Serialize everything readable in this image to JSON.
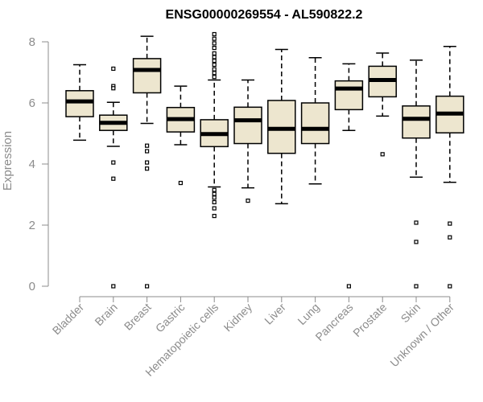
{
  "chart_data": {
    "type": "boxplot",
    "title": "ENSG00000269554 - AL590822.2",
    "xlabel": "",
    "ylabel": "Expression",
    "ylim": [
      0,
      8
    ],
    "yticks": [
      0,
      2,
      4,
      6,
      8
    ],
    "colors": {
      "box_fill": "#ede6cf",
      "stroke": "#000000",
      "axis": "#8c8c8c",
      "median": "#000000"
    },
    "categories": [
      "Bladder",
      "Brain",
      "Breast",
      "Gastric",
      "Hematopoietic cells",
      "Kidney",
      "Liver",
      "Lung",
      "Pancreas",
      "Prostate",
      "Skin",
      "Unknown / Other"
    ],
    "boxes": [
      {
        "category": "Bladder",
        "whisker_low": 4.78,
        "q1": 5.55,
        "median": 6.05,
        "q3": 6.4,
        "whisker_high": 7.25,
        "outliers": []
      },
      {
        "category": "Brain",
        "whisker_low": 4.58,
        "q1": 5.1,
        "median": 5.35,
        "q3": 5.6,
        "whisker_high": 6.02,
        "outliers": [
          7.12,
          6.55,
          6.48,
          4.05,
          3.52,
          0.0
        ]
      },
      {
        "category": "Breast",
        "whisker_low": 5.33,
        "q1": 6.33,
        "median": 7.08,
        "q3": 7.45,
        "whisker_high": 8.18,
        "outliers": [
          4.6,
          4.42,
          4.05,
          3.85,
          0.0
        ]
      },
      {
        "category": "Gastric",
        "whisker_low": 4.63,
        "q1": 5.05,
        "median": 5.47,
        "q3": 5.85,
        "whisker_high": 6.55,
        "outliers": [
          3.38
        ]
      },
      {
        "category": "Hematopoietic cells",
        "whisker_low": 3.25,
        "q1": 4.57,
        "median": 4.98,
        "q3": 5.45,
        "whisker_high": 6.75,
        "outliers": [
          8.25,
          8.1,
          7.95,
          7.8,
          7.62,
          7.5,
          7.38,
          7.25,
          7.1,
          6.98,
          6.85,
          3.15,
          3.02,
          2.9,
          2.75,
          2.55,
          2.3
        ]
      },
      {
        "category": "Kidney",
        "whisker_low": 3.22,
        "q1": 4.67,
        "median": 5.43,
        "q3": 5.86,
        "whisker_high": 6.75,
        "outliers": [
          2.8
        ]
      },
      {
        "category": "Liver",
        "whisker_low": 2.7,
        "q1": 4.35,
        "median": 5.15,
        "q3": 6.08,
        "whisker_high": 7.75,
        "outliers": []
      },
      {
        "category": "Lung",
        "whisker_low": 3.35,
        "q1": 4.67,
        "median": 5.15,
        "q3": 6.0,
        "whisker_high": 7.48,
        "outliers": []
      },
      {
        "category": "Pancreas",
        "whisker_low": 5.1,
        "q1": 5.78,
        "median": 6.47,
        "q3": 6.72,
        "whisker_high": 7.28,
        "outliers": [
          0.0
        ]
      },
      {
        "category": "Prostate",
        "whisker_low": 5.57,
        "q1": 6.2,
        "median": 6.75,
        "q3": 7.2,
        "whisker_high": 7.63,
        "outliers": [
          4.32
        ]
      },
      {
        "category": "Skin",
        "whisker_low": 3.57,
        "q1": 4.85,
        "median": 5.48,
        "q3": 5.9,
        "whisker_high": 7.4,
        "outliers": [
          2.08,
          1.45,
          0.0
        ]
      },
      {
        "category": "Unknown / Other",
        "whisker_low": 3.4,
        "q1": 5.02,
        "median": 5.65,
        "q3": 6.22,
        "whisker_high": 7.85,
        "outliers": [
          2.05,
          1.6,
          0.0
        ]
      }
    ]
  }
}
